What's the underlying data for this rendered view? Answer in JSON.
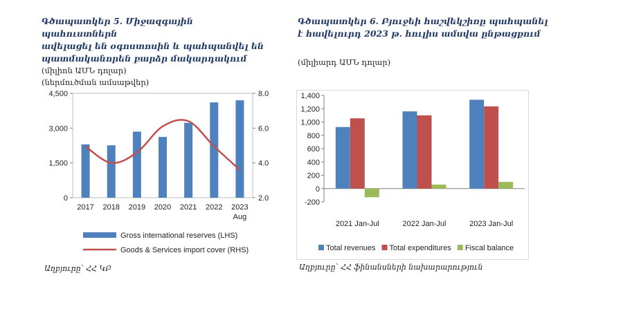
{
  "chart5": {
    "title_lines": [
      "Գծապատկեր 5. Միջազգային պահուստներն",
      "ավելացել են օգոստոսին և պահպանվել են",
      "պատմականորեն բարձր մակարդակում"
    ],
    "units": "(միլիոն ԱՄՆ դոլար)",
    "units2": "(ներմուծման ամսաթվեր)",
    "source": "Աղբյուրը՝ ՀՀ ԿԲ"
  },
  "chart6": {
    "title_lines": [
      "Գծապատկեր 6. Բյուջեի հաշվեկշիռը պահպանել",
      "է հավելուրդ 2023 թ. հուլիս ամսվա ընթացքում"
    ],
    "units": "(միլիարդ ԱՄՆ դոլար)",
    "source": "Աղբյուրը՝ ՀՀ ֆինանսների նախարարություն"
  },
  "chart_data": [
    {
      "type": "bar",
      "categories": [
        "2017",
        "2018",
        "2019",
        "2020",
        "2021",
        "2022",
        "2023\nAug"
      ],
      "series": [
        {
          "name": "Gross international reserves (LHS)",
          "type": "bar",
          "axis": "left",
          "color": "#4f81bd",
          "values": [
            2300,
            2260,
            2850,
            2620,
            3230,
            4110,
            4200
          ]
        },
        {
          "name": "Goods & Services import cover  (RHS)",
          "type": "line",
          "axis": "right",
          "color": "#c0504d",
          "values": [
            4.95,
            4.0,
            4.6,
            6.1,
            6.4,
            4.95,
            3.6
          ]
        }
      ],
      "y_left": {
        "min": 0,
        "max": 4500,
        "ticks": [
          "0",
          "1,500",
          "3,000",
          "4,500"
        ],
        "tick_values": [
          0,
          1500,
          3000,
          4500
        ]
      },
      "y_right": {
        "min": 2.0,
        "max": 8.0,
        "ticks": [
          "2.0",
          "4.0",
          "6.0",
          "8.0"
        ],
        "tick_values": [
          2,
          4,
          6,
          8
        ]
      },
      "legend_position": "bottom"
    },
    {
      "type": "bar",
      "categories": [
        "2021 Jan-Jul",
        "2022 Jan-Jul",
        "2023 Jan-Jul"
      ],
      "series": [
        {
          "name": "Total revenues",
          "color": "#4f81bd",
          "values": [
            925,
            1160,
            1335
          ]
        },
        {
          "name": "Total expenditures",
          "color": "#c0504d",
          "values": [
            1055,
            1100,
            1235
          ]
        },
        {
          "name": "Fiscal balance",
          "color": "#9bbb59",
          "values": [
            -130,
            60,
            100
          ]
        }
      ],
      "y": {
        "min": -200,
        "max": 1400,
        "ticks": [
          "-200",
          "0",
          "200",
          "400",
          "600",
          "800",
          "1,000",
          "1,200",
          "1,400"
        ],
        "tick_values": [
          -200,
          0,
          200,
          400,
          600,
          800,
          1000,
          1200,
          1400
        ]
      },
      "legend_position": "bottom"
    }
  ]
}
